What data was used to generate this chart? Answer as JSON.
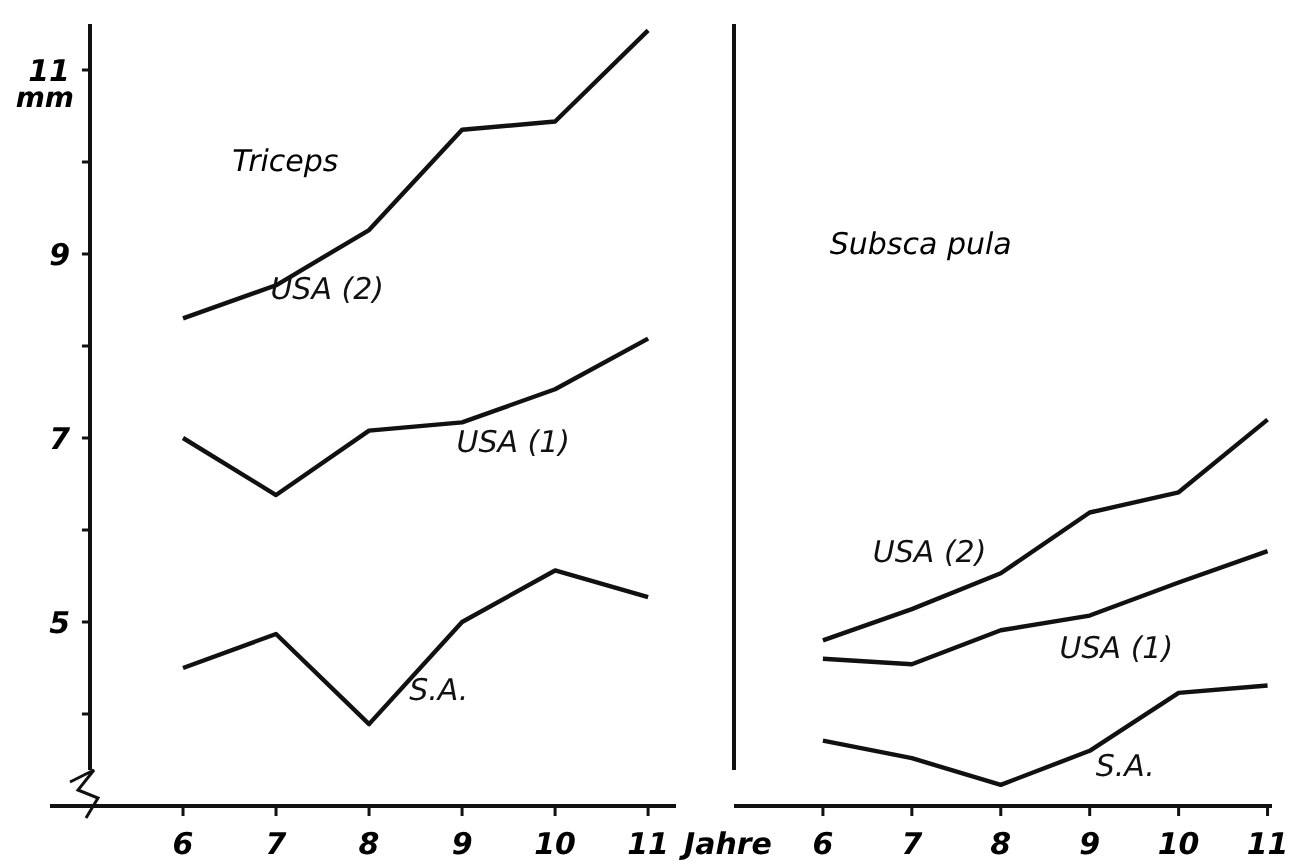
{
  "chart_data": [
    {
      "type": "line",
      "title": "Triceps",
      "xlabel": "Jahre",
      "ylabel": "mm",
      "x": [
        6,
        7,
        8,
        9,
        10,
        11
      ],
      "xlim": [
        5,
        11.3
      ],
      "xticks": [
        6,
        7,
        8,
        9,
        10,
        11
      ],
      "ylim": [
        3,
        11.5
      ],
      "yticks": [
        {
          "value": 4,
          "label": null
        },
        5,
        {
          "value": 6,
          "label": null
        },
        7,
        {
          "value": 8,
          "label": null
        },
        9,
        {
          "value": 10,
          "label": null
        },
        11
      ],
      "series": [
        {
          "name": "USA (2)",
          "color": "#111111",
          "values": [
            8.3,
            8.66,
            9.26,
            10.35,
            10.44,
            11.43
          ]
        },
        {
          "name": "USA (1)",
          "color": "#111111",
          "values": [
            7.0,
            6.38,
            7.08,
            7.17,
            7.53,
            8.08
          ]
        },
        {
          "name": "S.A.",
          "color": "#111111",
          "values": [
            4.5,
            4.87,
            3.89,
            5.0,
            5.56,
            5.27
          ]
        }
      ]
    },
    {
      "type": "line",
      "title": "Subsca pula",
      "x": [
        6,
        7,
        8,
        9,
        10,
        11
      ],
      "xlim": [
        5,
        11.05
      ],
      "xticks": [
        6,
        7,
        8,
        9,
        10,
        11
      ],
      "ylim": [
        3,
        11.5
      ],
      "tick_labels": "x",
      "series": [
        {
          "name": "USA (2)",
          "color": "#111111",
          "values": [
            4.8,
            5.14,
            5.53,
            6.19,
            6.41,
            7.2
          ]
        },
        {
          "name": "USA (1)",
          "color": "#111111",
          "values": [
            4.6,
            4.54,
            4.91,
            5.07,
            5.43,
            5.77
          ]
        },
        {
          "name": "S.A.",
          "color": "#111111",
          "values": [
            3.71,
            3.52,
            3.23,
            3.6,
            4.23,
            4.31
          ]
        }
      ]
    }
  ]
}
